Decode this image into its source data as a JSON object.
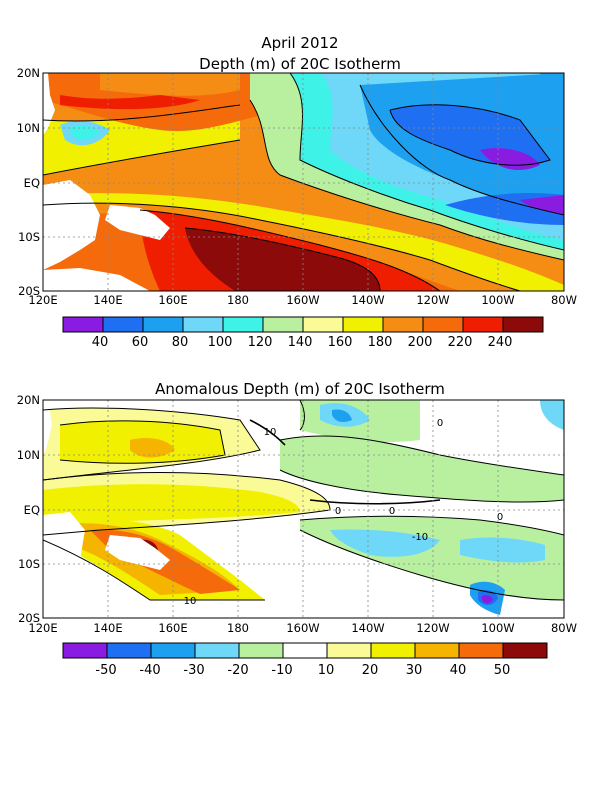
{
  "top": {
    "date": "April 2012",
    "title": "Depth (m) of 20C Isotherm",
    "lat_labels": [
      "20N",
      "10N",
      "EQ",
      "10S",
      "20S"
    ],
    "lon_labels": [
      "120E",
      "140E",
      "160E",
      "180",
      "160W",
      "140W",
      "120W",
      "100W",
      "80W"
    ],
    "colorbar": {
      "colors": [
        "#8a1be0",
        "#1e6ff2",
        "#1ea0f0",
        "#6fd8f8",
        "#3ff2e8",
        "#b8f0a0",
        "#fafa96",
        "#f0f000",
        "#f58c14",
        "#f56a0a",
        "#f01e00",
        "#8c0a0a"
      ],
      "labels": [
        "40",
        "60",
        "80",
        "100",
        "120",
        "140",
        "160",
        "180",
        "200",
        "220",
        "240"
      ]
    }
  },
  "bottom": {
    "title": "Anomalous Depth (m) of 20C Isotherm",
    "lat_labels": [
      "20N",
      "10N",
      "EQ",
      "10S",
      "20S"
    ],
    "lon_labels": [
      "120E",
      "140E",
      "160E",
      "180",
      "160W",
      "140W",
      "120W",
      "100W",
      "80W"
    ],
    "contour_labels": [
      "10",
      "0",
      "0",
      "10",
      "0",
      "-10",
      "0"
    ],
    "colorbar": {
      "colors": [
        "#8a1be0",
        "#1e6ff2",
        "#1ea0f0",
        "#6fd8f8",
        "#b8f0a0",
        "#ffffff",
        "#fafa96",
        "#f0f000",
        "#f5b400",
        "#f56a0a",
        "#8c0a0a"
      ],
      "labels": [
        "-50",
        "-40",
        "-30",
        "-20",
        "-10",
        "10",
        "20",
        "30",
        "40",
        "50"
      ]
    }
  }
}
